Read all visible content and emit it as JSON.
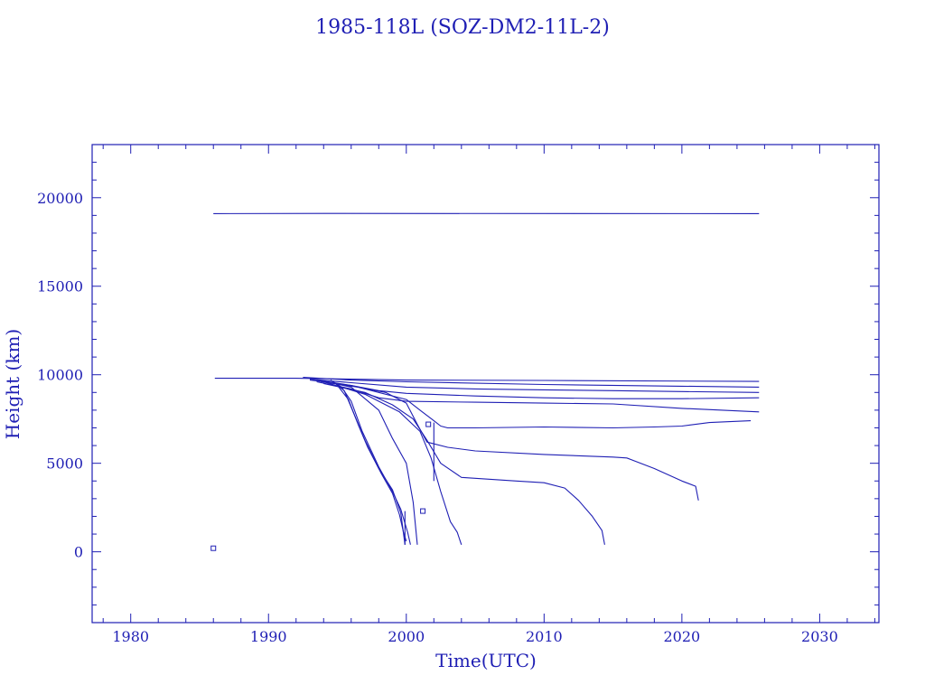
{
  "chart_data": {
    "type": "line",
    "title": "1985-118L (SOZ-DM2-11L-2)",
    "xlabel": "Time(UTC)",
    "ylabel": "Height (km)",
    "xlim": [
      1977.2,
      2034.3
    ],
    "ylim": [
      -4000,
      23000
    ],
    "x_ticks": [
      {
        "value": 1980,
        "label": "1980"
      },
      {
        "value": 1990,
        "label": "1990"
      },
      {
        "value": 2000,
        "label": "2000"
      },
      {
        "value": 2010,
        "label": "2010"
      },
      {
        "value": 2020,
        "label": "2020"
      },
      {
        "value": 2030,
        "label": "2030"
      }
    ],
    "y_ticks": [
      {
        "value": 0,
        "label": "0"
      },
      {
        "value": 5000,
        "label": "5000"
      },
      {
        "value": 10000,
        "label": "10000"
      },
      {
        "value": 15000,
        "label": "15000"
      },
      {
        "value": 20000,
        "label": "20000"
      }
    ],
    "grid": false,
    "color": "#1f1fb4",
    "series": [
      {
        "x": [
          1986.0,
          1994.0,
          2025.6
        ],
        "y": [
          19100,
          19110,
          19100
        ]
      },
      {
        "x": [
          1986.1,
          1992.0,
          1993.0,
          2000.0,
          2010.0,
          2025.6
        ],
        "y": [
          9800,
          9800,
          9790,
          9700,
          9680,
          9620
        ]
      },
      {
        "x": [
          1992.5,
          1996.0,
          2000.0,
          2010.0,
          2020.0,
          2025.6
        ],
        "y": [
          9850,
          9700,
          9600,
          9450,
          9350,
          9300
        ]
      },
      {
        "x": [
          1993.0,
          1996.0,
          2000.0,
          2005.0,
          2010.0,
          2015.0,
          2020.0,
          2025.6
        ],
        "y": [
          9750,
          9550,
          9300,
          9200,
          9150,
          9100,
          9050,
          9000
        ]
      },
      {
        "x": [
          1993.0,
          1996.0,
          1998.0,
          2000.0,
          2005.0,
          2010.0,
          2015.0,
          2020.0,
          2025.6
        ],
        "y": [
          9700,
          9400,
          9100,
          8950,
          8800,
          8700,
          8650,
          8650,
          8700
        ]
      },
      {
        "x": [
          1993.5,
          1996.0,
          1998.0,
          2000.0,
          2005.0,
          2010.0,
          2015.0,
          2020.0,
          2025.6
        ],
        "y": [
          9600,
          9200,
          8700,
          8500,
          8450,
          8400,
          8350,
          8100,
          7900
        ]
      },
      {
        "x": [
          1993.5,
          1996.0,
          1998.0,
          2000.0,
          2001.0,
          2002.0,
          2002.5,
          2003.0,
          2005.0,
          2010.0,
          2015.0,
          2018.0,
          2020.0,
          2022.0,
          2025.0
        ],
        "y": [
          9700,
          9400,
          9000,
          8600,
          8000,
          7400,
          7100,
          7000,
          7000,
          7050,
          7000,
          7050,
          7100,
          7300,
          7400
        ]
      },
      {
        "x": [
          1993.8,
          1996.5,
          1998.5,
          2000.0,
          2000.8,
          2001.5,
          2003.0,
          2005.0,
          2010.0,
          2015.0,
          2016.0,
          2018.0,
          2020.0,
          2021.0,
          2021.2
        ],
        "y": [
          9600,
          9300,
          9000,
          8400,
          7200,
          6200,
          5900,
          5700,
          5500,
          5350,
          5300,
          4700,
          4000,
          3700,
          2900
        ]
      },
      {
        "x": [
          1994.0,
          1997.0,
          1999.0,
          2000.5,
          2001.5,
          2002.5,
          2004.0,
          2008.0,
          2010.0,
          2011.5,
          2012.5,
          2013.5,
          2014.2,
          2014.4
        ],
        "y": [
          9500,
          9000,
          8300,
          7500,
          6300,
          5000,
          4200,
          4000,
          3900,
          3600,
          2900,
          2000,
          1200,
          400
        ]
      },
      {
        "x": [
          1994.0,
          1997.0,
          1999.5,
          2001.0,
          2001.8,
          2002.5,
          2003.2,
          2003.7,
          2004.0
        ],
        "y": [
          9600,
          8900,
          7900,
          6800,
          5300,
          3400,
          1700,
          1100,
          400
        ]
      },
      {
        "x": [
          1994.2,
          1996.0,
          1998.0,
          1999.0,
          2000.0,
          2000.5,
          2000.8
        ],
        "y": [
          9600,
          9300,
          8000,
          6400,
          5000,
          2800,
          400
        ]
      },
      {
        "x": [
          1994.5,
          1995.3,
          1996.0,
          1996.8,
          1998.0,
          1999.0,
          1999.6,
          2000.1,
          2000.3
        ],
        "y": [
          9700,
          9300,
          8500,
          6800,
          4800,
          3400,
          2400,
          1100,
          400
        ]
      },
      {
        "x": [
          1994.7,
          1995.5,
          1996.2,
          1997.0,
          1998.0,
          1999.0,
          1999.6,
          1999.9
        ],
        "y": [
          9600,
          9100,
          7800,
          6300,
          4700,
          3500,
          2200,
          400
        ]
      },
      {
        "x": [
          1994.9,
          1995.8,
          1996.5,
          1997.2,
          1998.2,
          1999.0,
          1999.5,
          1999.8,
          2000.0
        ],
        "y": [
          9500,
          8600,
          7200,
          5900,
          4400,
          3300,
          2100,
          1100,
          600
        ]
      },
      {
        "x": [
          1999.9,
          1999.9
        ],
        "y": [
          400,
          2300
        ]
      },
      {
        "x": [
          2002.0,
          2002.0
        ],
        "y": [
          4000,
          7300
        ]
      }
    ],
    "markers": [
      {
        "x": 2001.2,
        "y": 2300
      },
      {
        "x": 2001.6,
        "y": 7200
      },
      {
        "x": 1986.0,
        "y": 200
      }
    ]
  }
}
